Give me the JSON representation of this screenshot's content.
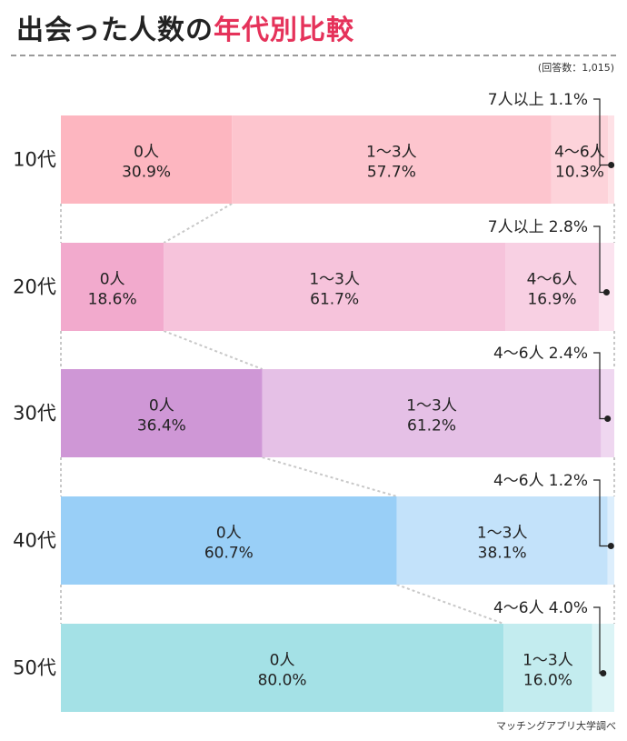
{
  "header": {
    "title_main": "出会った人数の",
    "title_accent": "年代別比較",
    "respondents": "(回答数：1,015)",
    "source": "マッチングアプリ大学調べ"
  },
  "chart_data": {
    "type": "bar",
    "orientation": "horizontal",
    "stacked": true,
    "normalized": true,
    "title": "出会った人数の年代別比較",
    "value_unit": "%",
    "categories": [
      "10代",
      "20代",
      "30代",
      "40代",
      "50代"
    ],
    "segment_names": [
      "0人",
      "1〜3人",
      "4〜6人",
      "7人以上"
    ],
    "series": [
      {
        "name": "0人",
        "values": [
          30.9,
          18.6,
          36.4,
          60.7,
          80.0
        ]
      },
      {
        "name": "1〜3人",
        "values": [
          57.7,
          61.7,
          61.2,
          38.1,
          16.0
        ]
      },
      {
        "name": "4〜6人",
        "values": [
          10.3,
          16.9,
          2.4,
          1.2,
          4.0
        ]
      },
      {
        "name": "7人以上",
        "values": [
          1.1,
          2.8,
          0,
          0,
          0
        ]
      }
    ],
    "value_labels": {
      "10代": [
        "30.9%",
        "57.7%",
        "10.3%",
        "1.1%"
      ],
      "20代": [
        "18.6%",
        "61.7%",
        "16.9%",
        "2.8%"
      ],
      "30代": [
        "36.4%",
        "61.2%",
        "2.4%"
      ],
      "40代": [
        "60.7%",
        "38.1%",
        "1.2%"
      ],
      "50代": [
        "80.0%",
        "16.0%",
        "4.0%"
      ]
    },
    "colors": {
      "10代": [
        "#fdb6c0",
        "#fdc5ce",
        "#fdd3da",
        "#fee1e6"
      ],
      "20代": [
        "#f2aacd",
        "#f6c3db",
        "#f8d0e3",
        "#fbe3ef"
      ],
      "30代": [
        "#cf97d6",
        "#e5c0e6",
        "#efd7f0"
      ],
      "40代": [
        "#99cff7",
        "#c3e2fa",
        "#ddeefc"
      ],
      "50代": [
        "#a4e1e6",
        "#c3ecef",
        "#dcf4f6"
      ]
    },
    "connector_color": "#c8c8c8",
    "callout_color": "#222222"
  }
}
